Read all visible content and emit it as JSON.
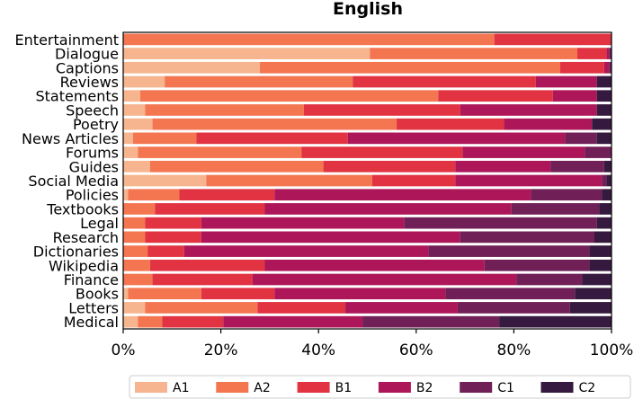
{
  "chart_data": {
    "type": "bar",
    "orientation": "horizontal",
    "stacked": true,
    "title": "English",
    "xlabel": "",
    "ylabel": "",
    "xlim": [
      0,
      100
    ],
    "x_ticks": [
      "0%",
      "20%",
      "40%",
      "60%",
      "80%",
      "100%"
    ],
    "legend_position": "bottom",
    "grid": false,
    "categories": [
      "Entertainment",
      "Dialogue",
      "Captions",
      "Reviews",
      "Statements",
      "Speech",
      "Poetry",
      "News Articles",
      "Forums",
      "Guides",
      "Social Media",
      "Policies",
      "Textbooks",
      "Legal",
      "Research",
      "Dictionaries",
      "Wikipedia",
      "Finance",
      "Books",
      "Letters",
      "Medical"
    ],
    "series": [
      {
        "name": "A1",
        "color": "#f6b48f",
        "values": [
          0,
          50.5,
          28,
          8.5,
          3.5,
          4.5,
          6,
          2,
          3,
          5.5,
          17,
          1,
          0,
          0,
          0,
          0,
          0,
          0,
          1,
          4.5,
          3
        ]
      },
      {
        "name": "A2",
        "color": "#f37651",
        "values": [
          76,
          42.5,
          61.5,
          38.5,
          61,
          32.5,
          50,
          13,
          33.5,
          35.5,
          34,
          10.5,
          6.5,
          4.5,
          4.5,
          5,
          5.5,
          6,
          15,
          23,
          5
        ]
      },
      {
        "name": "B1",
        "color": "#e13342",
        "values": [
          24,
          6,
          9,
          37.5,
          23.5,
          32,
          22,
          31,
          33,
          27,
          17,
          19.5,
          22.5,
          11.5,
          11.5,
          7.5,
          23.5,
          20.5,
          15,
          18,
          12.5
        ]
      },
      {
        "name": "B2",
        "color": "#ad1759",
        "values": [
          0,
          0.5,
          1,
          12.5,
          9,
          28,
          18,
          44.5,
          25,
          19.5,
          30,
          52.5,
          50.5,
          41.5,
          53,
          50,
          45,
          54,
          35,
          23,
          28.5
        ]
      },
      {
        "name": "C1",
        "color": "#701f57",
        "values": [
          0,
          0.5,
          0.5,
          0,
          0,
          0,
          0,
          6.5,
          5.5,
          11,
          1,
          14.5,
          18,
          39.5,
          27.5,
          33,
          21.5,
          13.5,
          26.5,
          23,
          28
        ]
      },
      {
        "name": "C2",
        "color": "#35193e",
        "values": [
          0,
          0,
          0,
          3,
          3,
          3,
          4,
          3,
          0,
          1.5,
          1,
          2,
          2.5,
          3,
          3.5,
          4.5,
          4.5,
          6,
          7.5,
          8.5,
          23
        ]
      }
    ]
  }
}
